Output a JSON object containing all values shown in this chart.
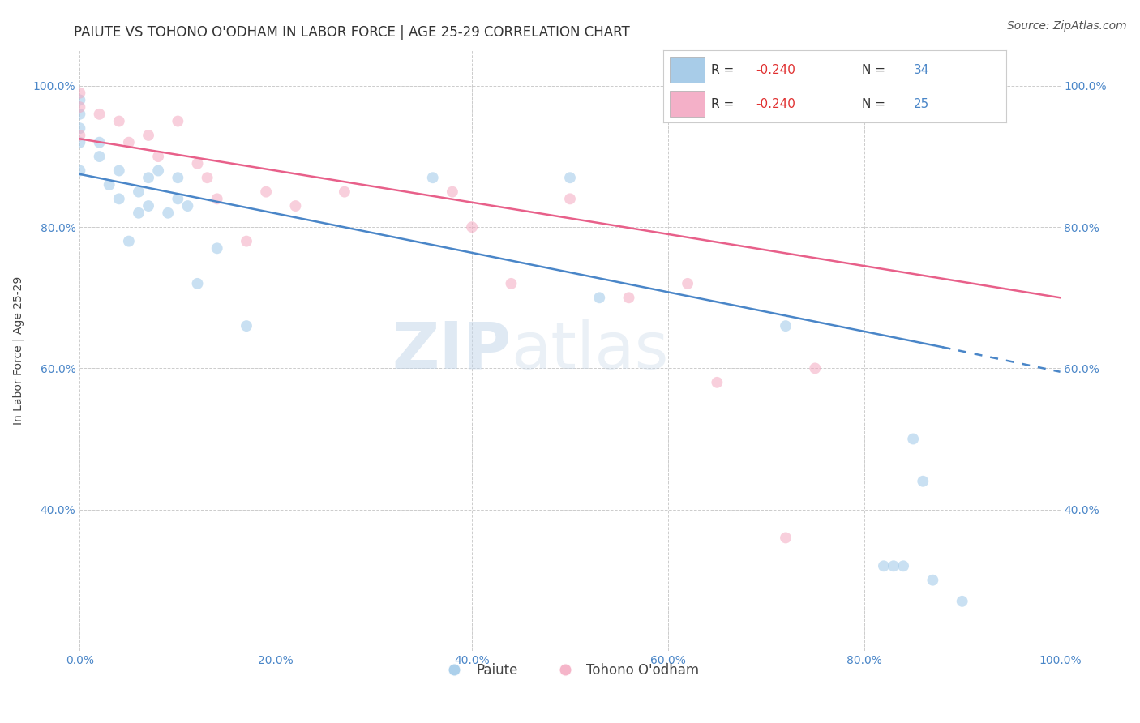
{
  "title": "PAIUTE VS TOHONO O'ODHAM IN LABOR FORCE | AGE 25-29 CORRELATION CHART",
  "source": "Source: ZipAtlas.com",
  "xlabel": "",
  "ylabel": "In Labor Force | Age 25-29",
  "xlim": [
    0.0,
    1.0
  ],
  "ylim": [
    0.2,
    1.05
  ],
  "xticks": [
    0.0,
    0.2,
    0.4,
    0.6,
    0.8,
    1.0
  ],
  "yticks": [
    0.4,
    0.6,
    0.8,
    1.0
  ],
  "xticklabels": [
    "0.0%",
    "20.0%",
    "40.0%",
    "60.0%",
    "80.0%",
    "100.0%"
  ],
  "yticklabels_left": [
    "40.0%",
    "60.0%",
    "80.0%",
    "100.0%"
  ],
  "yticklabels_right": [
    "40.0%",
    "60.0%",
    "80.0%",
    "100.0%"
  ],
  "background_color": "#ffffff",
  "grid_color": "#cccccc",
  "paiute_color": "#9ec8e8",
  "tohono_color": "#f4a8c0",
  "paiute_line_color": "#4a86c8",
  "tohono_line_color": "#e8608a",
  "legend_paiute_label": "Paiute",
  "legend_tohono_label": "Tohono O'odham",
  "R_paiute": -0.24,
  "N_paiute": 34,
  "R_tohono": -0.24,
  "N_tohono": 25,
  "watermark_zip": "ZIP",
  "watermark_atlas": "atlas",
  "paiute_x": [
    0.0,
    0.0,
    0.0,
    0.0,
    0.0,
    0.02,
    0.02,
    0.03,
    0.04,
    0.04,
    0.05,
    0.06,
    0.06,
    0.07,
    0.07,
    0.08,
    0.09,
    0.1,
    0.1,
    0.11,
    0.12,
    0.14,
    0.17,
    0.36,
    0.5,
    0.53,
    0.72,
    0.82,
    0.83,
    0.84,
    0.85,
    0.86,
    0.87,
    0.9
  ],
  "paiute_y": [
    0.98,
    0.96,
    0.94,
    0.92,
    0.88,
    0.92,
    0.9,
    0.86,
    0.88,
    0.84,
    0.78,
    0.85,
    0.82,
    0.87,
    0.83,
    0.88,
    0.82,
    0.87,
    0.84,
    0.83,
    0.72,
    0.77,
    0.66,
    0.87,
    0.87,
    0.7,
    0.66,
    0.32,
    0.32,
    0.32,
    0.5,
    0.44,
    0.3,
    0.27
  ],
  "tohono_x": [
    0.0,
    0.0,
    0.0,
    0.02,
    0.04,
    0.05,
    0.07,
    0.08,
    0.1,
    0.12,
    0.13,
    0.14,
    0.17,
    0.19,
    0.22,
    0.27,
    0.38,
    0.4,
    0.44,
    0.5,
    0.56,
    0.62,
    0.65,
    0.72,
    0.75
  ],
  "tohono_y": [
    0.99,
    0.97,
    0.93,
    0.96,
    0.95,
    0.92,
    0.93,
    0.9,
    0.95,
    0.89,
    0.87,
    0.84,
    0.78,
    0.85,
    0.83,
    0.85,
    0.85,
    0.8,
    0.72,
    0.84,
    0.7,
    0.72,
    0.58,
    0.36,
    0.6
  ],
  "marker_size": 100,
  "marker_alpha": 0.55,
  "line_width": 1.8,
  "legend_box_color_paiute": "#a8cce8",
  "legend_box_color_tohono": "#f4b0c8",
  "title_fontsize": 12,
  "axis_label_fontsize": 10,
  "tick_fontsize": 10,
  "source_fontsize": 10,
  "legend_R_color": "#e05050",
  "legend_N_color": "#4a86c8",
  "paiute_trendline_start": 0.0,
  "paiute_trendline_end_solid": 0.88,
  "paiute_trendline_end_dashed": 1.0,
  "tohono_trendline_start": 0.0,
  "tohono_trendline_end": 1.0,
  "paiute_trend_y0": 0.875,
  "paiute_trend_y1_solid": 0.63,
  "paiute_trend_y1_dashed": 0.595,
  "tohono_trend_y0": 0.925,
  "tohono_trend_y1": 0.7
}
